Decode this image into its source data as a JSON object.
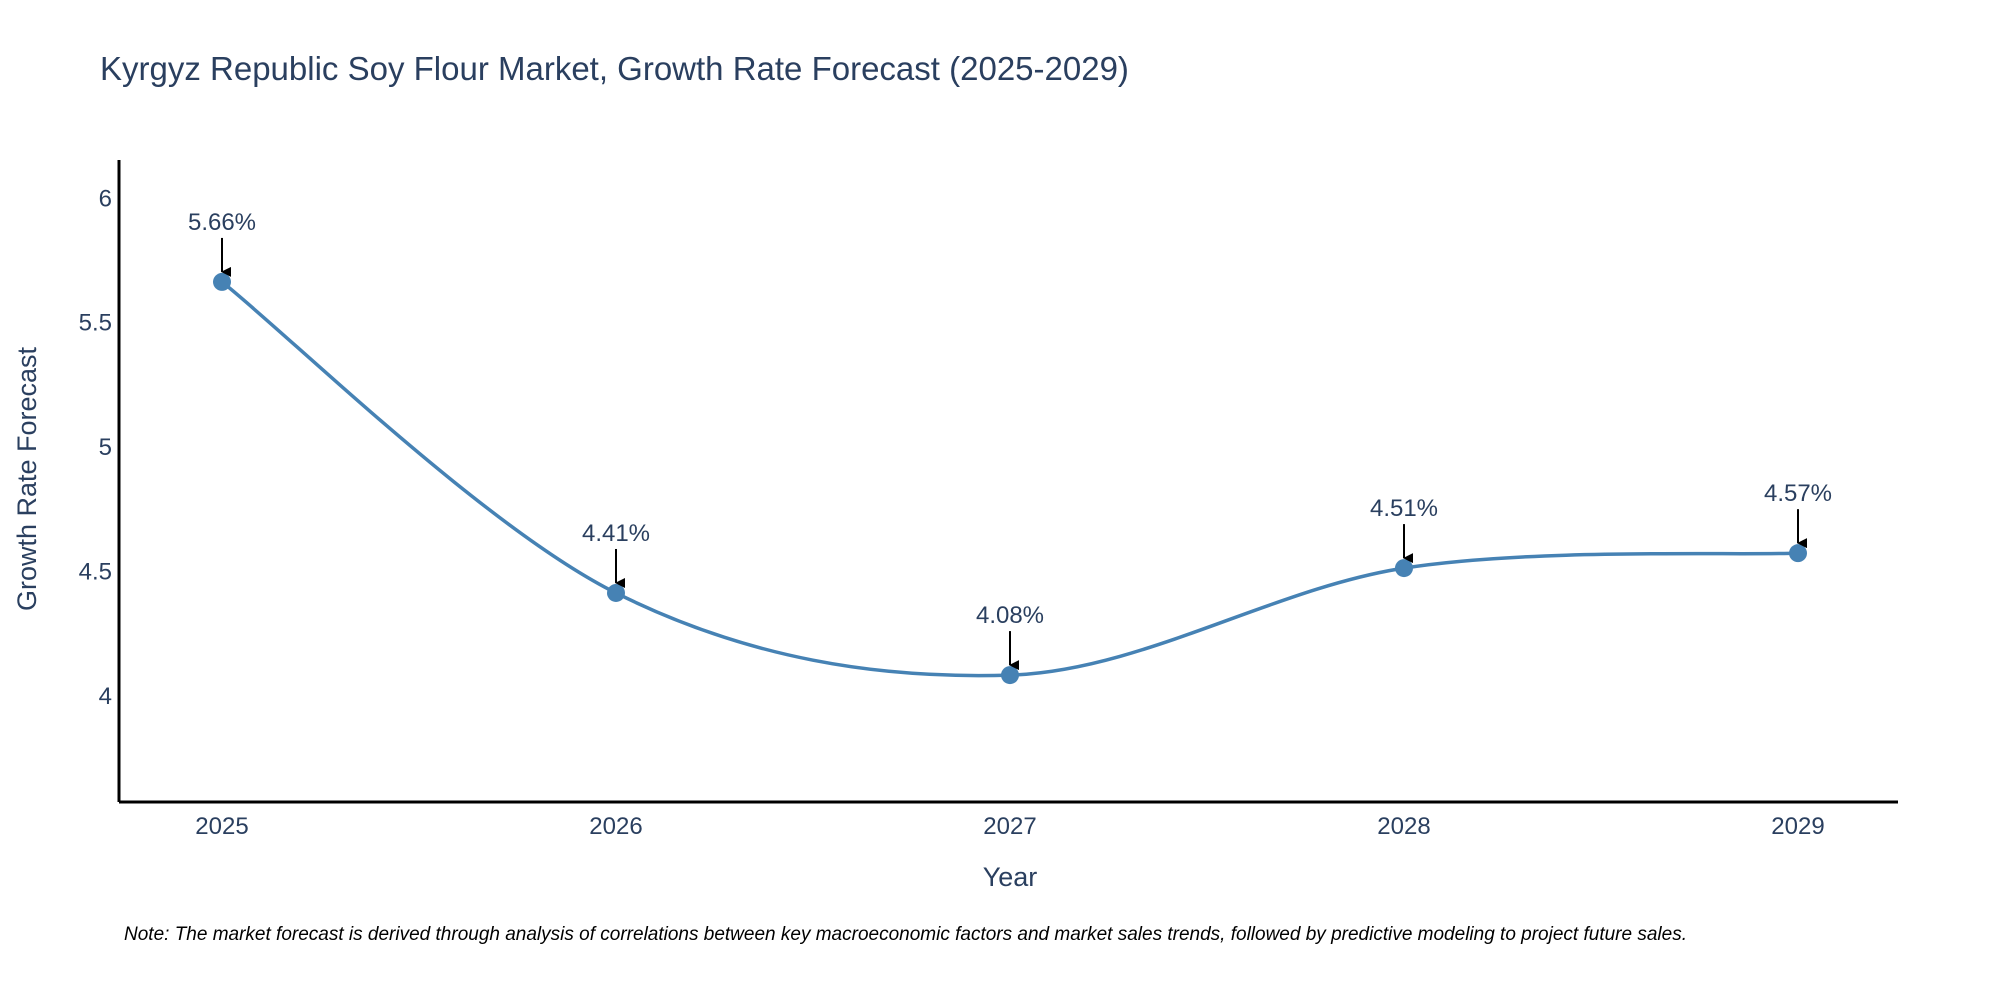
{
  "chart_data": {
    "type": "line",
    "title": "Kyrgyz Republic Soy Flour Market, Growth Rate Forecast (2025-2029)",
    "xlabel": "Year",
    "ylabel": "Growth Rate Forecast",
    "categories": [
      "2025",
      "2026",
      "2027",
      "2028",
      "2029"
    ],
    "values": [
      5.66,
      4.41,
      4.08,
      4.51,
      4.57
    ],
    "data_labels": [
      "5.66%",
      "4.41%",
      "4.08%",
      "4.51%",
      "4.57%"
    ],
    "yticks": [
      4,
      4.5,
      5,
      5.5,
      6
    ],
    "ytick_labels": [
      "4",
      "4.5",
      "5",
      "5.5",
      "6"
    ],
    "ylim": [
      3.57,
      6.15
    ],
    "grid": false,
    "line_shape": "spline",
    "note": "Note: The market forecast is derived through analysis of correlations between key macroeconomic factors and market sales trends, followed by predictive modeling to project future sales."
  },
  "colors": {
    "line": "#4682b4",
    "marker": "#4682b4",
    "axis": "#000000",
    "text": "#2a3f5f",
    "arrow": "#000000",
    "note": "#000000"
  }
}
